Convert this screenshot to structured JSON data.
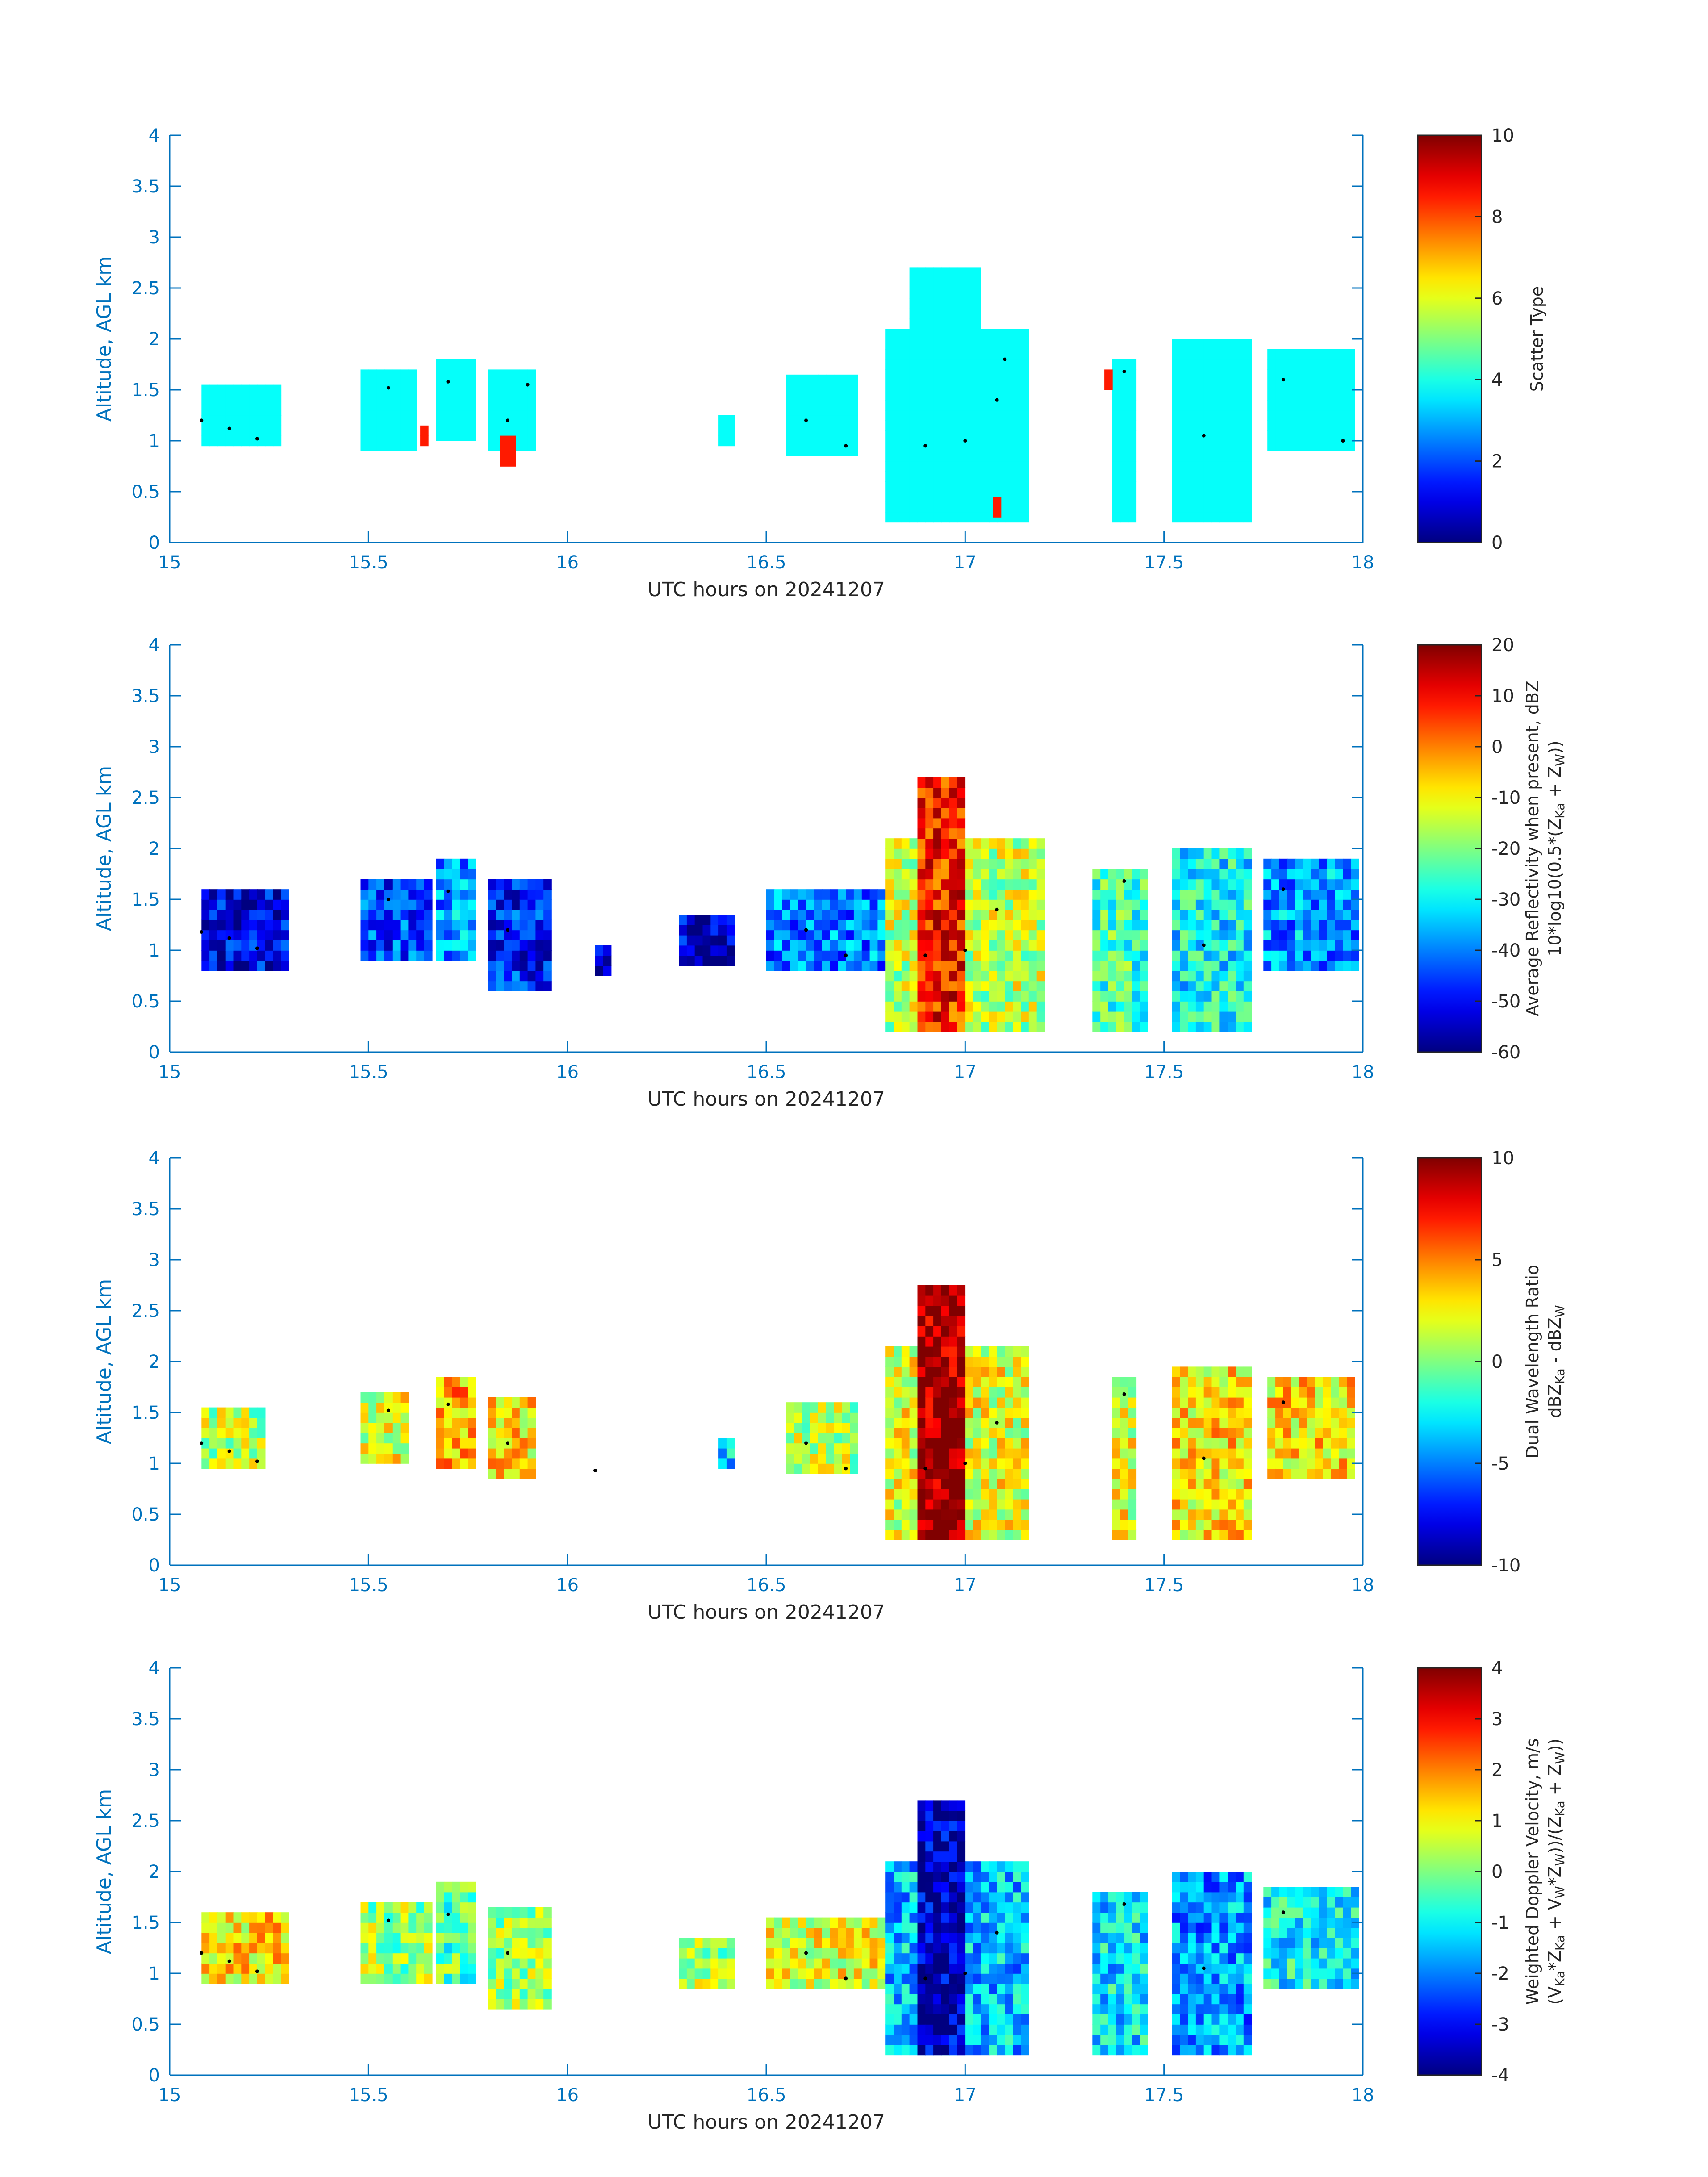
{
  "chart_data": [
    {
      "type": "heatmap",
      "x_range": [
        15,
        18
      ],
      "y_range": [
        0,
        4
      ],
      "x_ticks": [
        "15",
        "15.5",
        "16",
        "16.5",
        "17",
        "17.5",
        "18"
      ],
      "y_ticks": [
        "0",
        "0.5",
        "1",
        "1.5",
        "2",
        "2.5",
        "3",
        "3.5",
        "4"
      ],
      "ylabel": "Altitude, AGL km",
      "xlabel": "UTC hours on 20241207",
      "colormap": "jet",
      "clim": [
        0,
        10
      ],
      "colorbar_ticks": [
        "0",
        "2",
        "4",
        "6",
        "8",
        "10"
      ],
      "colorbar_label": [
        "Scatter Type"
      ],
      "field": "scatter",
      "cells": [
        {
          "x": [
            15.08,
            15.28
          ],
          "y": [
            0.95,
            1.5
          ],
          "value": 3.8
        },
        {
          "x": [
            15.48,
            15.62
          ],
          "y": [
            0.9,
            1.65
          ],
          "value": 3.8
        },
        {
          "x": [
            15.67,
            15.76
          ],
          "y": [
            1.0,
            1.8
          ],
          "value": 3.8
        },
        {
          "x": [
            15.8,
            15.92
          ],
          "y": [
            0.9,
            1.7
          ],
          "value": 3.8
        },
        {
          "x": [
            16.38,
            16.42
          ],
          "y": [
            0.95,
            1.25
          ],
          "value": 3.8
        },
        {
          "x": [
            16.55,
            16.72
          ],
          "y": [
            0.85,
            1.6
          ],
          "value": 3.8
        },
        {
          "x": [
            16.8,
            17.15
          ],
          "y": [
            0.2,
            2.1
          ],
          "value": 3.8
        },
        {
          "x": [
            16.86,
            17.04
          ],
          "y": [
            2.1,
            2.7
          ],
          "value": 3.8
        },
        {
          "x": [
            17.37,
            17.43
          ],
          "y": [
            0.2,
            1.8
          ],
          "value": 3.8
        },
        {
          "x": [
            17.52,
            17.72
          ],
          "y": [
            0.2,
            1.95
          ],
          "value": 3.8
        },
        {
          "x": [
            17.76,
            17.97
          ],
          "y": [
            0.9,
            1.85
          ],
          "value": 3.8
        },
        {
          "x": [
            15.83,
            15.86
          ],
          "y": [
            0.75,
            1.0
          ],
          "value": 8.5
        },
        {
          "x": [
            15.63,
            15.65
          ],
          "y": [
            0.95,
            1.15
          ],
          "value": 8.5
        },
        {
          "x": [
            17.35,
            17.37
          ],
          "y": [
            1.5,
            1.65
          ],
          "value": 8.5
        },
        {
          "x": [
            17.07,
            17.09
          ],
          "y": [
            0.25,
            0.4
          ],
          "value": 8.5
        }
      ],
      "points": [
        [
          15.08,
          1.2
        ],
        [
          15.15,
          1.12
        ],
        [
          15.22,
          1.02
        ],
        [
          15.55,
          1.52
        ],
        [
          15.7,
          1.58
        ],
        [
          15.85,
          1.2
        ],
        [
          15.9,
          1.55
        ],
        [
          16.6,
          1.2
        ],
        [
          16.7,
          0.95
        ],
        [
          16.9,
          0.95
        ],
        [
          17.0,
          1.0
        ],
        [
          17.08,
          1.4
        ],
        [
          17.1,
          1.8
        ],
        [
          17.4,
          1.68
        ],
        [
          17.6,
          1.05
        ],
        [
          17.8,
          1.6
        ],
        [
          17.95,
          1.0
        ]
      ]
    },
    {
      "type": "heatmap",
      "x_range": [
        15,
        18
      ],
      "y_range": [
        0,
        4
      ],
      "x_ticks": [
        "15",
        "15.5",
        "16",
        "16.5",
        "17",
        "17.5",
        "18"
      ],
      "y_ticks": [
        "0",
        "0.5",
        "1",
        "1.5",
        "2",
        "2.5",
        "3",
        "3.5",
        "4"
      ],
      "ylabel": "Altitude, AGL km",
      "xlabel": "UTC hours on 20241207",
      "colormap": "jet",
      "clim": [
        -60,
        20
      ],
      "colorbar_ticks": [
        "-60",
        "-50",
        "-40",
        "-30",
        "-20",
        "-10",
        "0",
        "10",
        "20"
      ],
      "colorbar_label": [
        "Average Reflectivity when present, dBZ",
        "10*log10(0.5*(Z",
        "Ka",
        " + Z",
        "W",
        "))"
      ],
      "field": "reflectivity",
      "cells": [
        {
          "x": [
            15.08,
            15.3
          ],
          "y": [
            0.8,
            1.55
          ],
          "value": -52
        },
        {
          "x": [
            15.48,
            15.65
          ],
          "y": [
            0.9,
            1.7
          ],
          "value": -45
        },
        {
          "x": [
            15.67,
            15.76
          ],
          "y": [
            0.9,
            1.85
          ],
          "value": -38
        },
        {
          "x": [
            15.8,
            15.95
          ],
          "y": [
            0.6,
            1.65
          ],
          "value": -48
        },
        {
          "x": [
            16.07,
            16.1
          ],
          "y": [
            0.75,
            1.0
          ],
          "value": -56
        },
        {
          "x": [
            16.28,
            16.42
          ],
          "y": [
            0.85,
            1.3
          ],
          "value": -54
        },
        {
          "x": [
            16.5,
            16.8
          ],
          "y": [
            0.8,
            1.55
          ],
          "value": -40
        },
        {
          "x": [
            16.8,
            17.2
          ],
          "y": [
            0.2,
            2.1
          ],
          "value": -15
        },
        {
          "x": [
            16.88,
            17.0
          ],
          "y": [
            0.2,
            2.7
          ],
          "value": 8
        },
        {
          "x": [
            17.32,
            17.45
          ],
          "y": [
            0.2,
            1.75
          ],
          "value": -25
        },
        {
          "x": [
            17.52,
            17.72
          ],
          "y": [
            0.2,
            1.95
          ],
          "value": -30
        },
        {
          "x": [
            17.75,
            17.98
          ],
          "y": [
            0.8,
            1.85
          ],
          "value": -38
        }
      ],
      "points": [
        [
          15.08,
          1.18
        ],
        [
          15.15,
          1.12
        ],
        [
          15.22,
          1.02
        ],
        [
          15.55,
          1.5
        ],
        [
          15.7,
          1.58
        ],
        [
          15.85,
          1.2
        ],
        [
          16.6,
          1.2
        ],
        [
          16.7,
          0.95
        ],
        [
          16.9,
          0.95
        ],
        [
          17.0,
          1.0
        ],
        [
          17.08,
          1.4
        ],
        [
          17.4,
          1.68
        ],
        [
          17.6,
          1.05
        ],
        [
          17.8,
          1.6
        ]
      ]
    },
    {
      "type": "heatmap",
      "x_range": [
        15,
        18
      ],
      "y_range": [
        0,
        4
      ],
      "x_ticks": [
        "15",
        "15.5",
        "16",
        "16.5",
        "17",
        "17.5",
        "18"
      ],
      "y_ticks": [
        "0",
        "0.5",
        "1",
        "1.5",
        "2",
        "2.5",
        "3",
        "3.5",
        "4"
      ],
      "ylabel": "Altitude, AGL km",
      "xlabel": "UTC hours on 20241207",
      "colormap": "jet",
      "clim": [
        -10,
        10
      ],
      "colorbar_ticks": [
        "-10",
        "-5",
        "0",
        "5",
        "10"
      ],
      "colorbar_label": [
        "Dual Wavelength Ratio",
        "dBZ",
        "Ka",
        " - dBZ",
        "W"
      ],
      "field": "dwr",
      "cells": [
        {
          "x": [
            15.08,
            15.24
          ],
          "y": [
            0.95,
            1.55
          ],
          "value": 1
        },
        {
          "x": [
            15.48,
            15.6
          ],
          "y": [
            1.0,
            1.65
          ],
          "value": 2
        },
        {
          "x": [
            15.67,
            15.76
          ],
          "y": [
            0.95,
            1.8
          ],
          "value": 4
        },
        {
          "x": [
            15.8,
            15.92
          ],
          "y": [
            0.85,
            1.65
          ],
          "value": 3
        },
        {
          "x": [
            16.38,
            16.42
          ],
          "y": [
            0.95,
            1.25
          ],
          "value": -3
        },
        {
          "x": [
            16.55,
            16.72
          ],
          "y": [
            0.9,
            1.6
          ],
          "value": 1
        },
        {
          "x": [
            16.8,
            17.15
          ],
          "y": [
            0.25,
            2.1
          ],
          "value": 2
        },
        {
          "x": [
            16.88,
            17.0
          ],
          "y": [
            0.25,
            2.7
          ],
          "value": 9.5
        },
        {
          "x": [
            17.37,
            17.43
          ],
          "y": [
            0.25,
            1.8
          ],
          "value": 2
        },
        {
          "x": [
            17.52,
            17.72
          ],
          "y": [
            0.25,
            1.95
          ],
          "value": 3
        },
        {
          "x": [
            17.76,
            17.97
          ],
          "y": [
            0.85,
            1.85
          ],
          "value": 3
        }
      ],
      "points": [
        [
          15.08,
          1.2
        ],
        [
          15.15,
          1.12
        ],
        [
          15.22,
          1.02
        ],
        [
          15.55,
          1.52
        ],
        [
          15.7,
          1.58
        ],
        [
          15.85,
          1.2
        ],
        [
          16.07,
          0.93
        ],
        [
          16.6,
          1.2
        ],
        [
          16.7,
          0.95
        ],
        [
          16.9,
          0.95
        ],
        [
          17.0,
          1.0
        ],
        [
          17.08,
          1.4
        ],
        [
          17.4,
          1.68
        ],
        [
          17.6,
          1.05
        ],
        [
          17.8,
          1.6
        ]
      ]
    },
    {
      "type": "heatmap",
      "x_range": [
        15,
        18
      ],
      "y_range": [
        0,
        4
      ],
      "x_ticks": [
        "15",
        "15.5",
        "16",
        "16.5",
        "17",
        "17.5",
        "18"
      ],
      "y_ticks": [
        "0",
        "0.5",
        "1",
        "1.5",
        "2",
        "2.5",
        "3",
        "3.5",
        "4"
      ],
      "ylabel": "Altitude, AGL km",
      "xlabel": "UTC hours on 20241207",
      "colormap": "jet",
      "clim": [
        -4,
        4
      ],
      "colorbar_ticks": [
        "-4",
        "-3",
        "-2",
        "-1",
        "0",
        "1",
        "2",
        "3",
        "4"
      ],
      "colorbar_label": [
        "Weighted Doppler Velocity, m/s",
        "(V",
        "Ka",
        "*Z",
        "Ka",
        " + V",
        "W",
        "*Z",
        "W",
        "))/(Z",
        "Ka",
        " + Z",
        "W",
        "))"
      ],
      "field": "velocity",
      "cells": [
        {
          "x": [
            15.08,
            15.3
          ],
          "y": [
            0.9,
            1.55
          ],
          "value": 1.2
        },
        {
          "x": [
            15.48,
            15.65
          ],
          "y": [
            0.9,
            1.7
          ],
          "value": 0.2
        },
        {
          "x": [
            15.67,
            15.76
          ],
          "y": [
            0.9,
            1.85
          ],
          "value": -0.3
        },
        {
          "x": [
            15.8,
            15.95
          ],
          "y": [
            0.65,
            1.65
          ],
          "value": 0.3
        },
        {
          "x": [
            16.28,
            16.42
          ],
          "y": [
            0.85,
            1.3
          ],
          "value": 0.3
        },
        {
          "x": [
            16.5,
            16.8
          ],
          "y": [
            0.85,
            1.55
          ],
          "value": 0.8
        },
        {
          "x": [
            16.8,
            17.15
          ],
          "y": [
            0.2,
            2.1
          ],
          "value": -1.5
        },
        {
          "x": [
            16.88,
            17.0
          ],
          "y": [
            0.2,
            2.7
          ],
          "value": -3.5
        },
        {
          "x": [
            17.32,
            17.45
          ],
          "y": [
            0.2,
            1.75
          ],
          "value": -1.2
        },
        {
          "x": [
            17.52,
            17.72
          ],
          "y": [
            0.2,
            1.95
          ],
          "value": -1.8
        },
        {
          "x": [
            17.75,
            17.98
          ],
          "y": [
            0.85,
            1.85
          ],
          "value": -1.0
        }
      ],
      "points": [
        [
          15.08,
          1.2
        ],
        [
          15.15,
          1.12
        ],
        [
          15.22,
          1.02
        ],
        [
          15.55,
          1.52
        ],
        [
          15.7,
          1.58
        ],
        [
          15.85,
          1.2
        ],
        [
          16.6,
          1.2
        ],
        [
          16.7,
          0.95
        ],
        [
          16.9,
          0.95
        ],
        [
          17.0,
          1.0
        ],
        [
          17.08,
          1.4
        ],
        [
          17.4,
          1.68
        ],
        [
          17.6,
          1.05
        ],
        [
          17.8,
          1.6
        ]
      ]
    }
  ]
}
